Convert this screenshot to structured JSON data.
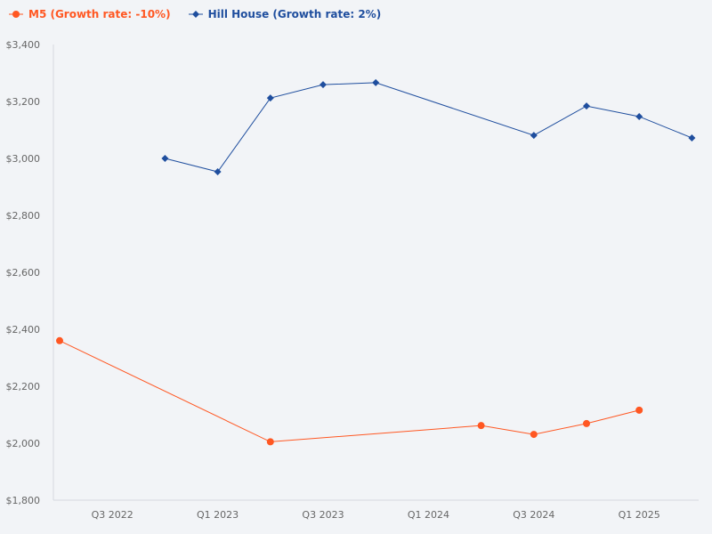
{
  "chart_data": {
    "type": "line",
    "title": "",
    "xlabel": "",
    "ylabel": "",
    "x": [
      "Q2 2022",
      "Q3 2022",
      "Q4 2022",
      "Q1 2023",
      "Q2 2023",
      "Q3 2023",
      "Q4 2023",
      "Q1 2024",
      "Q2 2024",
      "Q3 2024",
      "Q4 2024",
      "Q1 2025",
      "Q2 2025"
    ],
    "x_tick_labels": [
      "Q3 2022",
      "Q1 2023",
      "Q3 2023",
      "Q1 2024",
      "Q3 2024",
      "Q1 2025"
    ],
    "y_tick_labels": [
      "$1,800",
      "$2,000",
      "$2,200",
      "$2,400",
      "$2,600",
      "$2,800",
      "$3,000",
      "$3,200",
      "$3,400"
    ],
    "y_ticks": [
      1800,
      2000,
      2200,
      2400,
      2600,
      2800,
      3000,
      3200,
      3400
    ],
    "ylim": [
      1800,
      3400
    ],
    "grid": false,
    "legend_position": "top-left",
    "series": [
      {
        "name": "M5 (Growth rate: -10%)",
        "color": "#ff5722",
        "marker": "circle",
        "values": [
          2360,
          null,
          null,
          null,
          2005,
          null,
          null,
          null,
          2062,
          2031,
          2069,
          2116,
          null
        ]
      },
      {
        "name": "Hill House (Growth rate: 2%)",
        "color": "#1f4e9e",
        "marker": "diamond",
        "values": [
          null,
          null,
          3000,
          2953,
          3212,
          3259,
          3266,
          null,
          null,
          3081,
          3184,
          3147,
          3072
        ]
      }
    ]
  }
}
